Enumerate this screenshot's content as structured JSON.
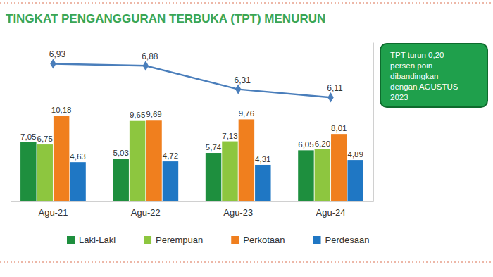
{
  "chart_data": {
    "type": "bar",
    "title": "TINGKAT PENGANGGURAN TERBUKA (TPT) MENURUN",
    "categories": [
      "Agu-21",
      "Agu-22",
      "Agu-23",
      "Agu-24"
    ],
    "series": [
      {
        "name": "Laki-Laki",
        "color": "#1e8f3e",
        "values": [
          7.05,
          5.03,
          5.74,
          6.05
        ],
        "value_labels": [
          "7,05",
          "5,03",
          "5,74",
          "6,05"
        ]
      },
      {
        "name": "Perempuan",
        "color": "#8dc63f",
        "values": [
          6.75,
          9.65,
          7.13,
          6.2
        ],
        "value_labels": [
          "6,75",
          "9,65",
          "7,13",
          "6,20"
        ]
      },
      {
        "name": "Perkotaan",
        "color": "#f07f1e",
        "values": [
          10.18,
          9.69,
          9.76,
          8.01
        ],
        "value_labels": [
          "10,18",
          "9,69",
          "9,76",
          "8,01"
        ]
      },
      {
        "name": "Perdesaan",
        "color": "#1f77c4",
        "values": [
          4.63,
          4.72,
          4.31,
          4.89
        ],
        "value_labels": [
          "4,63",
          "4,72",
          "4,31",
          "4,89"
        ]
      },
      {
        "type": "line",
        "axis": "y2",
        "color": "#4a7ebb",
        "marker": "diamond",
        "values": [
          6.93,
          6.88,
          6.31,
          6.11
        ],
        "value_labels": [
          "6,93",
          "6,88",
          "6,31",
          "6,11"
        ]
      }
    ],
    "ylim": [
      0,
      19
    ],
    "y2lim": [
      3.6,
      7.45
    ],
    "tick_labels": "x",
    "data_labels": true,
    "legend": "bottom",
    "annotation": [
      "TPT turun 0,20",
      "persen poin",
      "dibandingkan",
      "dengan AGUSTUS",
      "2023"
    ]
  }
}
